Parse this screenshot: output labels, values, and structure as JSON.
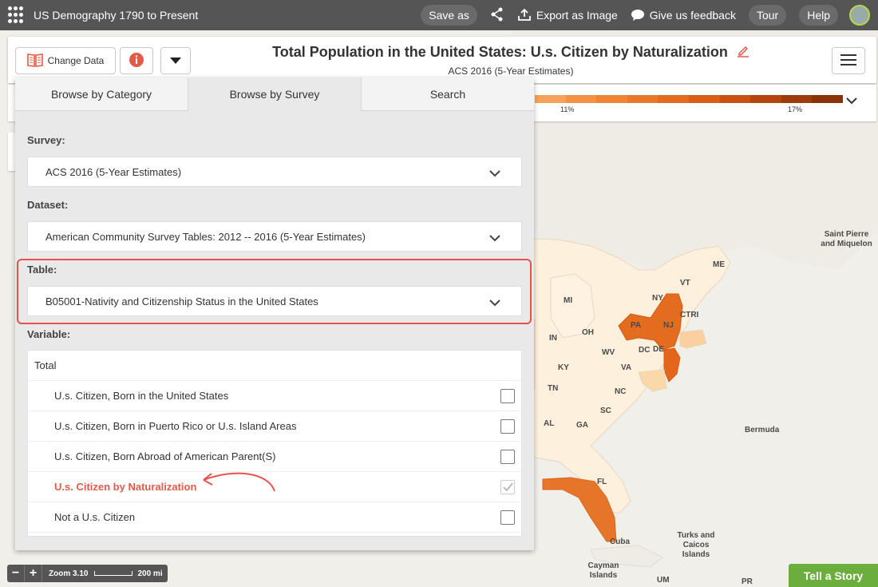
{
  "topbar": {
    "app_title": "US Demography 1790 to Present",
    "save_as": "Save as",
    "export": "Export as Image",
    "feedback": "Give us feedback",
    "tour": "Tour",
    "help": "Help"
  },
  "header": {
    "change_data": "Change Data",
    "title": "Total Population in the United States: U.s. Citizen by Naturalization",
    "subtitle": "ACS 2016 (5-Year Estimates)"
  },
  "legend": {
    "colors": [
      "#f7a25a",
      "#f39244",
      "#ee8434",
      "#e8782a",
      "#e26b20",
      "#d95f16",
      "#c95112",
      "#b4450f",
      "#9e3b0c",
      "#8a320a"
    ],
    "ticks": [
      "11%",
      "17%"
    ]
  },
  "panel": {
    "tabs": [
      "Browse by Category",
      "Browse by Survey",
      "Search"
    ],
    "active_tab": 1,
    "survey_label": "Survey:",
    "survey_value": "ACS 2016 (5-Year Estimates)",
    "dataset_label": "Dataset:",
    "dataset_value": "American Community Survey Tables: 2012 -- 2016 (5-Year Estimates)",
    "table_label": "Table:",
    "table_value": "B05001-Nativity and Citizenship Status in the United States",
    "variable_label": "Variable:",
    "variables": [
      {
        "label": "Total",
        "level": "top",
        "checked": false
      },
      {
        "label": "U.s. Citizen, Born in the United States",
        "level": "child",
        "checked": false
      },
      {
        "label": "U.s. Citizen, Born in Puerto Rico or U.s. Island Areas",
        "level": "child",
        "checked": false
      },
      {
        "label": "U.s. Citizen, Born Abroad of American Parent(S)",
        "level": "child",
        "checked": false
      },
      {
        "label": "U.s. Citizen by Naturalization",
        "level": "child",
        "checked": true
      },
      {
        "label": "Not a U.s. Citizen",
        "level": "child",
        "checked": false
      }
    ]
  },
  "map": {
    "labels": {
      "me": "ME",
      "vt": "VT",
      "ny": "NY",
      "ctri": "CTRI",
      "mi": "MI",
      "pa": "PA",
      "nj": "NJ",
      "oh": "OH",
      "in": "IN",
      "wv": "WV",
      "dc": "DC",
      "de": "DE",
      "va": "VA",
      "ky": "KY",
      "tn": "TN",
      "nc": "NC",
      "sc": "SC",
      "al": "AL",
      "ga": "GA",
      "fl": "FL",
      "saint_pierre": "Saint Pierre and Miquelon",
      "bermuda": "Bermuda",
      "turks": "Turks and Caicos Islands",
      "cuba": "Cuba",
      "cayman": "Cayman Islands",
      "um": "UM",
      "pr": "PR"
    }
  },
  "controls": {
    "zoom": "Zoom 3.10",
    "scale": "200 mi",
    "tell_story": "Tell a Story"
  }
}
